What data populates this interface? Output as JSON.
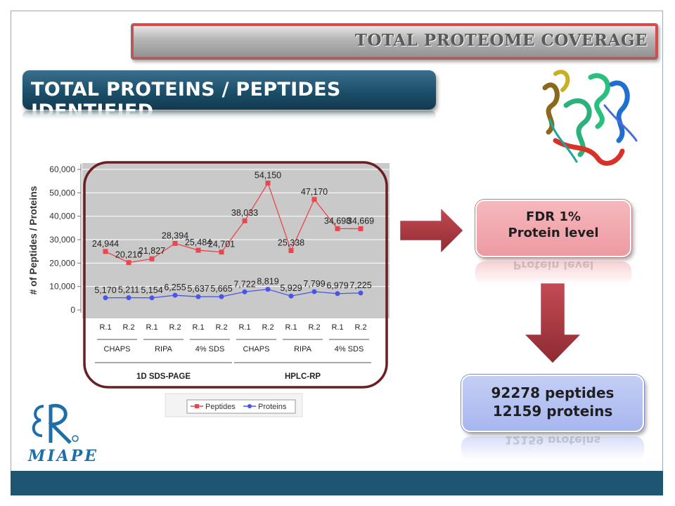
{
  "header": {
    "banner": "TOTAL PROTEOME COVERAGE"
  },
  "title": "TOTAL PROTEINS / PEPTIDES IDENTIFIED",
  "boxes": {
    "fdr_line1": "FDR 1%",
    "fdr_line2": "Protein level",
    "result_line1": "92278 peptides",
    "result_line2": "12159 proteins"
  },
  "logo": {
    "text": "MIAPE",
    "icon": "ER-logo-icon"
  },
  "icons": {
    "protein_structure": "protein-ribbon-icon",
    "arrow_right": "arrow-right-icon",
    "arrow_down": "arrow-down-icon"
  },
  "colors": {
    "peptides": "#e8474e",
    "proteins": "#4a55e8",
    "accent_dark": "#1d5572",
    "highlight_border": "#6b1f24"
  },
  "chart_data": {
    "type": "line",
    "ylabel": "# of Peptides / Proteins",
    "ylim": [
      0,
      60000
    ],
    "yticks": [
      "0",
      "10,000",
      "20,000",
      "30,000",
      "40,000",
      "50,000",
      "60,000"
    ],
    "categories": [
      "R.1",
      "R.2",
      "R.1",
      "R.2",
      "R.1",
      "R.2",
      "R.1",
      "R.2",
      "R.1",
      "R.2",
      "R.1",
      "R.2"
    ],
    "category_groups": [
      "CHAPS",
      "RIPA",
      "4% SDS",
      "CHAPS",
      "RIPA",
      "4% SDS"
    ],
    "method_groups": [
      "1D SDS-PAGE",
      "HPLC-RP"
    ],
    "series": [
      {
        "name": "Peptides",
        "values": [
          24944,
          20210,
          21827,
          28394,
          25484,
          24701,
          38033,
          54150,
          25338,
          47170,
          34698,
          34669
        ],
        "labels": [
          "24,944",
          "20,210",
          "21,827",
          "28,394",
          "25,484",
          "24,701",
          "38,033",
          "54,150",
          "25,338",
          "47,170",
          "34,698",
          "34,669"
        ]
      },
      {
        "name": "Proteins",
        "values": [
          5170,
          5211,
          5154,
          6255,
          5637,
          5665,
          7722,
          8819,
          5929,
          7799,
          6979,
          7225
        ],
        "labels": [
          "5,170",
          "5,211",
          "5,154",
          "6,255",
          "5,637",
          "5,665",
          "7,722",
          "8,819",
          "5,929",
          "7,799",
          "6,979",
          "7,225"
        ]
      }
    ],
    "grid": true,
    "legend": "bottom"
  }
}
